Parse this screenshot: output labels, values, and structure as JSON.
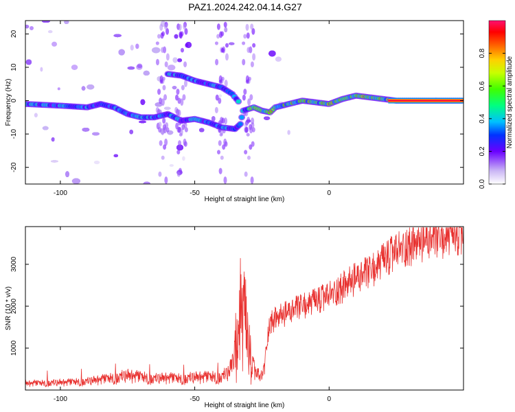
{
  "title": "PAZ1.2024.242.04.14.G27",
  "chart_data": [
    {
      "type": "heatmap",
      "name": "spectrogram",
      "xlabel": "Height of straight line (km)",
      "ylabel": "Frequency (Hz)",
      "xlim": [
        -113,
        50
      ],
      "ylim": [
        -25,
        24
      ],
      "xticks": [
        -100,
        -50,
        0
      ],
      "yticks": [
        -20,
        -10,
        0,
        10,
        20
      ],
      "colorbar": {
        "label": "Normalized spectral amplitude",
        "range": [
          0,
          1
        ],
        "ticks": [
          0.0,
          0.2,
          0.4,
          0.6,
          0.8
        ]
      },
      "tracks": [
        {
          "description": "main signal ridge",
          "points": [
            [
              -113,
              -1
            ],
            [
              -100,
              -1.5
            ],
            [
              -90,
              -2
            ],
            [
              -85,
              -1
            ],
            [
              -80,
              -2
            ],
            [
              -75,
              -4
            ],
            [
              -70,
              -5
            ],
            [
              -65,
              -5
            ],
            [
              -60,
              -4
            ],
            [
              -55,
              -6
            ],
            [
              -50,
              -5.5
            ],
            [
              -45,
              -6.5
            ],
            [
              -40,
              -8
            ],
            [
              -35,
              -8.5
            ],
            [
              -33,
              -7
            ],
            [
              -32,
              -3
            ],
            [
              -28,
              -2
            ],
            [
              -25,
              -3
            ],
            [
              -22,
              -3.5
            ],
            [
              -20,
              -2
            ],
            [
              -15,
              -1
            ],
            [
              -10,
              0
            ],
            [
              -5,
              -0.5
            ],
            [
              0,
              -1
            ],
            [
              5,
              0.5
            ],
            [
              10,
              1.5
            ],
            [
              15,
              1
            ],
            [
              20,
              0.5
            ],
            [
              25,
              0
            ],
            [
              50,
              0
            ]
          ]
        },
        {
          "description": "upper branch",
          "points": [
            [
              -60,
              8
            ],
            [
              -55,
              7.5
            ],
            [
              -50,
              6
            ],
            [
              -45,
              5
            ],
            [
              -40,
              4
            ],
            [
              -36,
              2
            ],
            [
              -33,
              -1
            ]
          ]
        }
      ]
    },
    {
      "type": "line",
      "name": "snr",
      "xlabel": "Height of straight line (km)",
      "ylabel": "SNR (10 * v/v)",
      "xlim": [
        -113,
        50
      ],
      "ylim": [
        0,
        3900
      ],
      "xticks": [
        -100,
        -50,
        0
      ],
      "yticks": [
        1000,
        2000,
        3000
      ],
      "color": "#e8312f",
      "envelope": [
        [
          -113,
          150
        ],
        [
          -100,
          170
        ],
        [
          -90,
          200
        ],
        [
          -80,
          280
        ],
        [
          -75,
          330
        ],
        [
          -70,
          300
        ],
        [
          -65,
          260
        ],
        [
          -60,
          280
        ],
        [
          -55,
          260
        ],
        [
          -50,
          290
        ],
        [
          -45,
          300
        ],
        [
          -40,
          300
        ],
        [
          -37,
          420
        ],
        [
          -35,
          900
        ],
        [
          -33,
          1800
        ],
        [
          -31,
          1400
        ],
        [
          -29,
          600
        ],
        [
          -27,
          380
        ],
        [
          -25,
          300
        ],
        [
          -24,
          600
        ],
        [
          -23,
          1250
        ],
        [
          -22,
          1600
        ],
        [
          -20,
          1700
        ],
        [
          -15,
          1850
        ],
        [
          -10,
          2000
        ],
        [
          -5,
          2100
        ],
        [
          0,
          2250
        ],
        [
          5,
          2450
        ],
        [
          10,
          2650
        ],
        [
          15,
          2800
        ],
        [
          20,
          3050
        ],
        [
          25,
          3300
        ],
        [
          30,
          3450
        ],
        [
          35,
          3550
        ],
        [
          40,
          3600
        ],
        [
          45,
          3650
        ],
        [
          50,
          3700
        ]
      ]
    }
  ]
}
